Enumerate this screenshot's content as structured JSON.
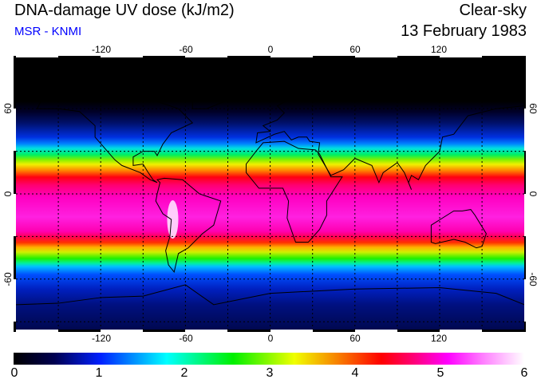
{
  "header": {
    "title": "DNA-damage UV dose (kJ/m2)",
    "source": "MSR - KNMI",
    "condition": "Clear-sky",
    "date": "13 February 1983"
  },
  "axes": {
    "lon_labels": [
      "-120",
      "-60",
      "0",
      "60",
      "120"
    ],
    "lat_labels": [
      "60",
      "0",
      "-60"
    ]
  },
  "colorbar": {
    "labels": [
      "0",
      "1",
      "2",
      "3",
      "4",
      "5",
      "6"
    ],
    "min": 0,
    "max": 6,
    "units": "kJ/m2"
  }
}
